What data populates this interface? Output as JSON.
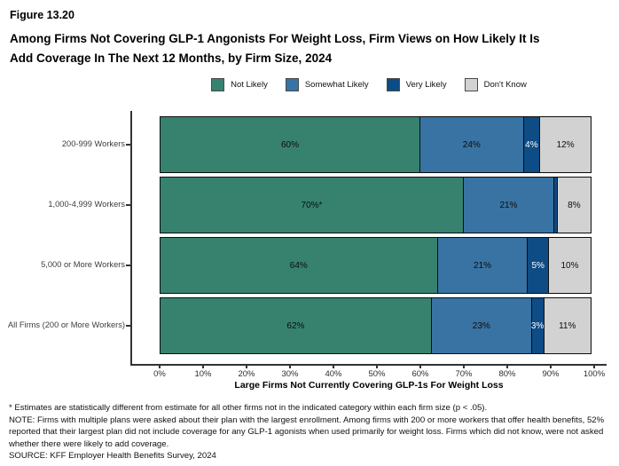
{
  "figure_label": "Figure 13.20",
  "title_line1": "Among Firms Not Covering GLP-1 Angonists For Weight Loss, Firm Views on How Likely It Is",
  "title_line2": "Add Coverage In The Next 12 Months, by Firm Size, 2024",
  "chart_data": {
    "type": "bar",
    "orientation": "horizontal",
    "stacked": true,
    "normalized_to_100": true,
    "categories": [
      "200-999 Workers",
      "1,000-4,999 Workers",
      "5,000 or More Workers",
      "All Firms (200 or More Workers)"
    ],
    "series": [
      {
        "name": "Not Likely",
        "color": "#37826F",
        "label_color": "#0d0d0d",
        "values": [
          60,
          70,
          64,
          62
        ],
        "labels": [
          "60%",
          "70%*",
          "64%",
          "62%"
        ]
      },
      {
        "name": "Somewhat Likely",
        "color": "#3873A3",
        "label_color": "#0d0d0d",
        "values": [
          24,
          21,
          21,
          23
        ],
        "labels": [
          "24%",
          "21%",
          "21%",
          "23%"
        ]
      },
      {
        "name": "Very Likely",
        "color": "#0E4C85",
        "label_color": "#ffffff",
        "values": [
          4,
          1,
          5,
          3
        ],
        "labels": [
          "4%",
          "",
          "5%",
          "3%"
        ]
      },
      {
        "name": "Don't Know",
        "color": "#D2D2D2",
        "label_color": "#0d0d0d",
        "values": [
          12,
          8,
          10,
          11
        ],
        "labels": [
          "12%",
          "8%",
          "10%",
          "11%"
        ]
      }
    ],
    "xlabel": "Large Firms Not Currently Covering GLP-1s For Weight Loss",
    "x_ticks": [
      "0%",
      "10%",
      "20%",
      "30%",
      "40%",
      "50%",
      "60%",
      "70%",
      "80%",
      "90%",
      "100%"
    ],
    "xlim": [
      0,
      100
    ],
    "legend_position": "top-center",
    "grid": false
  },
  "footnotes": [
    "* Estimates are statistically different from estimate for all other firms not in the indicated category within each firm size (p < .05).",
    "NOTE: Firms with multiple plans were asked about their plan with the largest enrollment.  Among firms with 200 or more workers that offer health benefits, 52% reported that their largest plan did not include coverage for any GLP-1 agonists when used primarily for weight loss.  Firms which did not know, were not asked whether there were likely to add coverage.",
    "SOURCE: KFF Employer Health Benefits Survey, 2024"
  ]
}
